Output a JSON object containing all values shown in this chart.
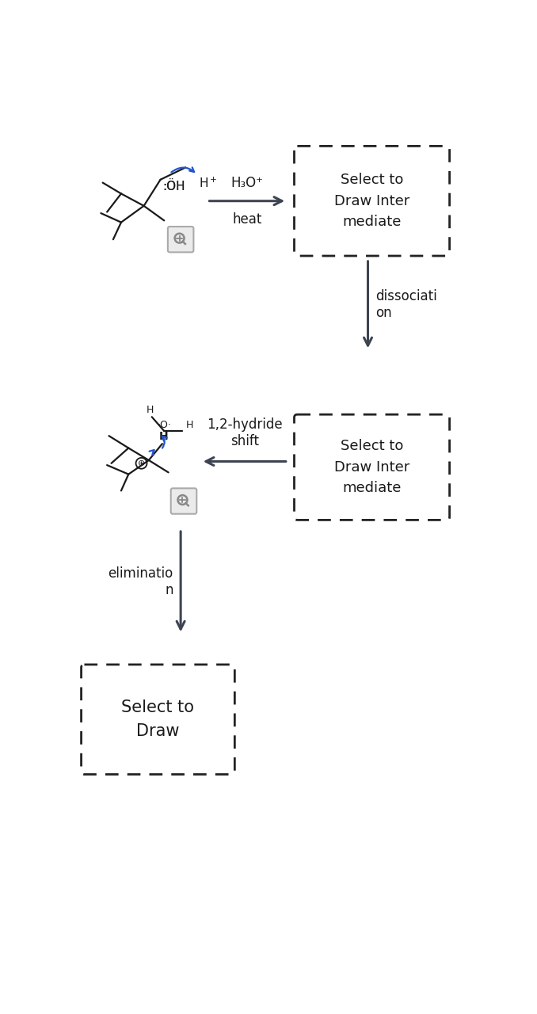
{
  "bg_color": "#ffffff",
  "arrow_color": "#3d4451",
  "blue_color": "#2255cc",
  "text_color": "#1a1a1a",
  "gray_color": "#999999",
  "fig_width": 6.78,
  "fig_height": 12.8,
  "box1_text": "Select to\nDraw Inter\nmediate",
  "box2_text": "Select to\nDraw Inter\nmediate",
  "box3_text": "Select to\nDraw",
  "reagent_text": "H₃O⁺",
  "heat_text": "heat",
  "dissociation_text": "dissociati\non",
  "hydride_text": "1,2-hydride\nshift",
  "elimination_text": "eliminatio\nn"
}
